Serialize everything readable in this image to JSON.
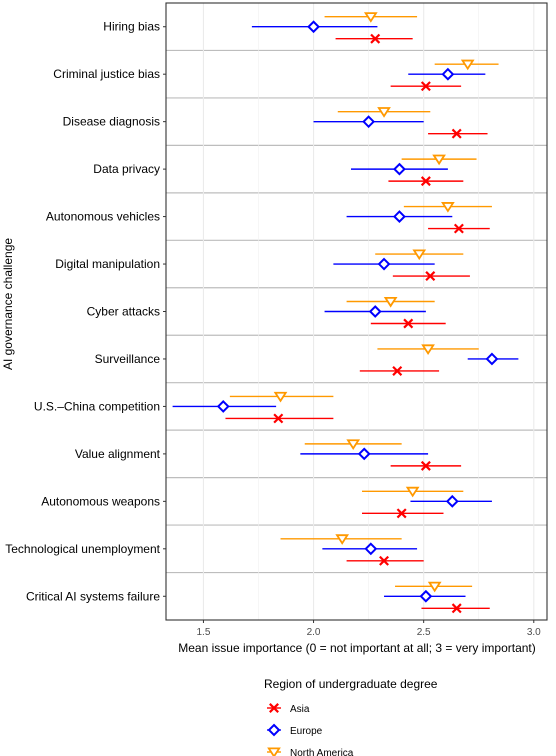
{
  "chart_data": {
    "type": "dot-and-whisker",
    "ylabel": "AI governance challenge",
    "xlabel": "Mean issue importance (0 = not important at all; 3 = very important)",
    "xlim": [
      1.33,
      3.06
    ],
    "xticks": [
      1.5,
      2.0,
      2.5,
      3.0
    ],
    "xtick_labels": [
      "1.5",
      "2.0",
      "2.5",
      "3.0"
    ],
    "grid": true,
    "legend": {
      "title": "Region of undergraduate degree",
      "placement": "bottom"
    },
    "categories": [
      "Hiring bias",
      "Criminal justice bias",
      "Disease diagnosis",
      "Data privacy",
      "Autonomous vehicles",
      "Digital manipulation",
      "Cyber attacks",
      "Surveillance",
      "U.S.–China competition",
      "Value alignment",
      "Autonomous weapons",
      "Technological unemployment",
      "Critical AI systems failure"
    ],
    "series": [
      {
        "name": "Asia",
        "color": "#ff0000",
        "marker": "cross",
        "values": [
          2.28,
          2.51,
          2.65,
          2.51,
          2.66,
          2.53,
          2.43,
          2.38,
          1.84,
          2.51,
          2.4,
          2.32,
          2.65
        ],
        "lower": [
          2.1,
          2.35,
          2.52,
          2.34,
          2.52,
          2.36,
          2.26,
          2.21,
          1.6,
          2.35,
          2.22,
          2.15,
          2.49
        ],
        "upper": [
          2.45,
          2.67,
          2.79,
          2.68,
          2.8,
          2.71,
          2.6,
          2.57,
          2.09,
          2.67,
          2.59,
          2.5,
          2.8
        ]
      },
      {
        "name": "Europe",
        "color": "#0000ff",
        "marker": "diamond",
        "values": [
          2.0,
          2.61,
          2.25,
          2.39,
          2.39,
          2.32,
          2.28,
          2.81,
          1.59,
          2.23,
          2.63,
          2.26,
          2.51
        ],
        "lower": [
          1.72,
          2.43,
          2.0,
          2.17,
          2.15,
          2.09,
          2.05,
          2.7,
          1.36,
          1.94,
          2.44,
          2.04,
          2.32
        ],
        "upper": [
          2.29,
          2.78,
          2.5,
          2.61,
          2.63,
          2.55,
          2.51,
          2.93,
          1.83,
          2.52,
          2.81,
          2.47,
          2.69
        ]
      },
      {
        "name": "North America",
        "color": "#ff9900",
        "marker": "triangle-down",
        "values": [
          2.26,
          2.7,
          2.32,
          2.57,
          2.61,
          2.48,
          2.35,
          2.52,
          1.85,
          2.18,
          2.45,
          2.13,
          2.55
        ],
        "lower": [
          2.05,
          2.55,
          2.11,
          2.4,
          2.41,
          2.28,
          2.15,
          2.29,
          1.62,
          1.96,
          2.22,
          1.85,
          2.37
        ],
        "upper": [
          2.47,
          2.84,
          2.53,
          2.74,
          2.81,
          2.68,
          2.55,
          2.75,
          2.09,
          2.4,
          2.68,
          2.4,
          2.72
        ]
      }
    ]
  }
}
